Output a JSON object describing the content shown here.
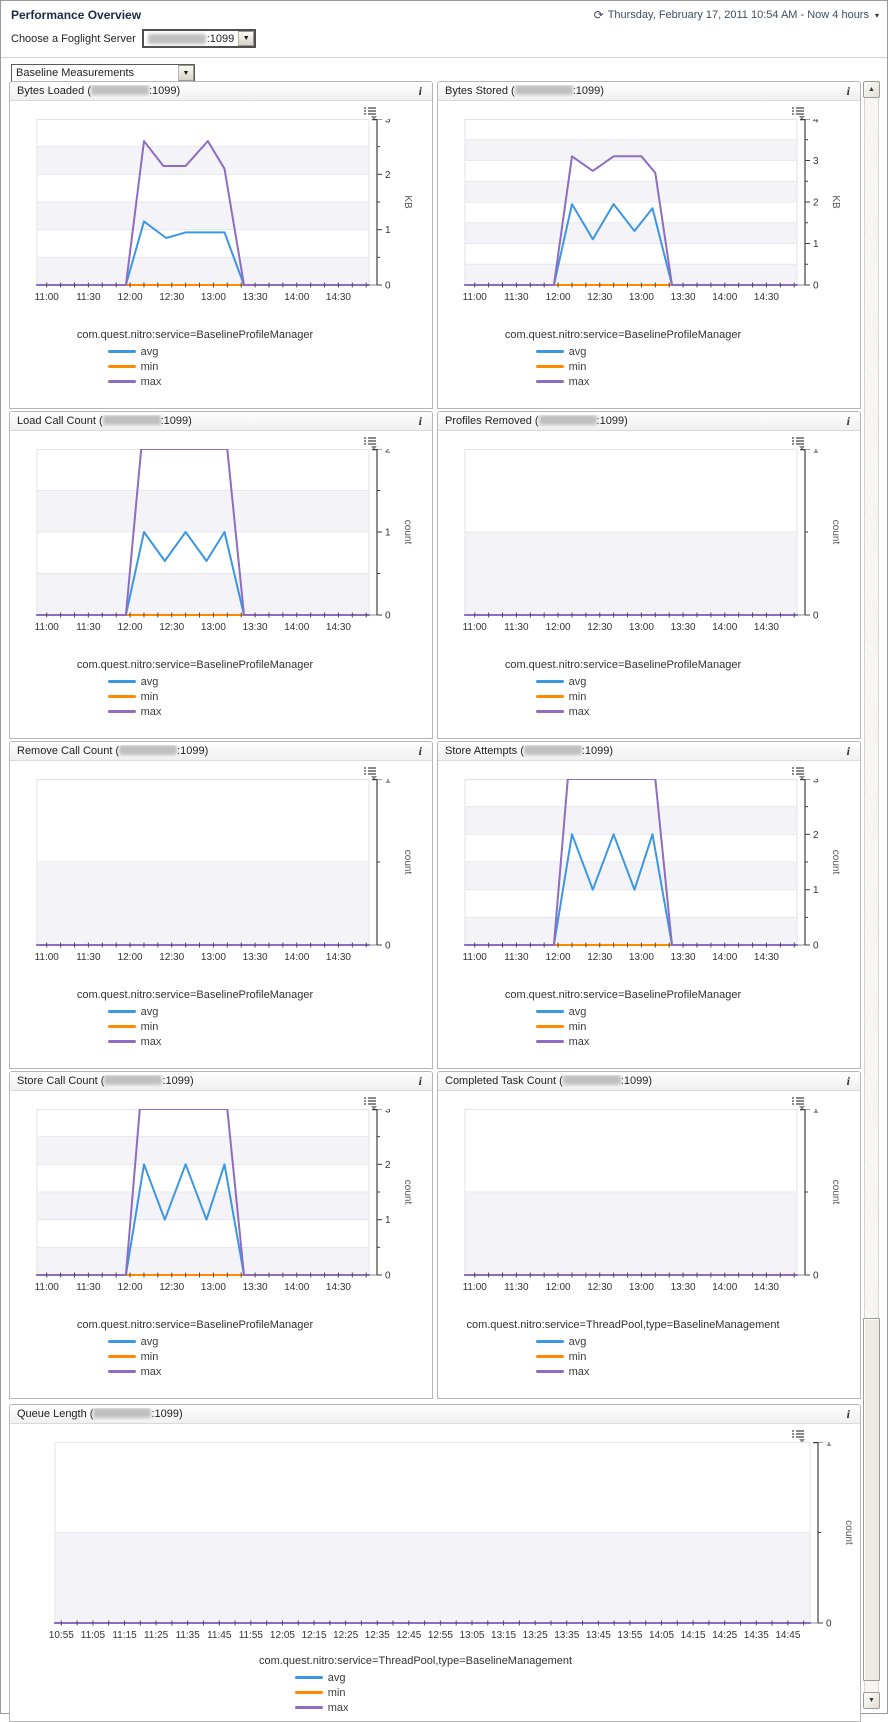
{
  "page": {
    "title": "Performance Overview",
    "timerange": "Thursday, February 17, 2011 10:54 AM - Now 4 hours",
    "server_label": "Choose a Foglight Server",
    "server_value_suffix": ":1099",
    "server_redacted": true,
    "measurement_value": "Baseline Measurements"
  },
  "icons": {
    "timerange": "⟳",
    "date_caret": "▾",
    "combo_arrow": "▼",
    "info": "i",
    "scroll_up": "▲",
    "scroll_down": "▼"
  },
  "colors": {
    "avg": "#3b97e3",
    "min": "#ff8a00",
    "max": "#8e6cc2",
    "band": "#f4f4f8",
    "grid": "#e7e7ee",
    "axis": "#3f3f3f",
    "baseline": "#8b8b93",
    "tick_text": "#333333",
    "unit_text": "#555555"
  },
  "legend_order": [
    "avg",
    "min",
    "max"
  ],
  "chart_data": [
    {
      "id": "bytes-loaded",
      "type": "line",
      "span": "half",
      "title_prefix": "Bytes Loaded (",
      "title_suffix": ":1099)",
      "legend_title": "com.quest.nitro:service=BaselineProfileManager",
      "ylim": [
        0,
        3
      ],
      "y_axis": {
        "unit": "KB",
        "major": 1,
        "minor": 0.5
      },
      "x_axis": {
        "range": [
          "10:53",
          "14:52"
        ],
        "tick_start": "11:00",
        "tick_step_min": 10,
        "labels": [
          "11:00",
          "11:30",
          "12:00",
          "12:30",
          "13:00",
          "13:30",
          "14:00",
          "14:30"
        ]
      },
      "series": [
        {
          "name": "avg",
          "points": [
            [
              "10:53",
              0
            ],
            [
              "11:57",
              0
            ],
            [
              "12:10",
              1.15
            ],
            [
              "12:26",
              0.85
            ],
            [
              "12:40",
              0.95
            ],
            [
              "13:08",
              0.95
            ],
            [
              "13:22",
              0
            ],
            [
              "14:52",
              0
            ]
          ]
        },
        {
          "name": "min",
          "points": [
            [
              "11:57",
              0
            ],
            [
              "13:22",
              0
            ]
          ]
        },
        {
          "name": "max",
          "points": [
            [
              "10:53",
              0
            ],
            [
              "11:57",
              0
            ],
            [
              "12:10",
              2.6
            ],
            [
              "12:24",
              2.15
            ],
            [
              "12:40",
              2.15
            ],
            [
              "12:56",
              2.6
            ],
            [
              "13:08",
              2.1
            ],
            [
              "13:22",
              0
            ],
            [
              "14:52",
              0
            ]
          ]
        }
      ]
    },
    {
      "id": "bytes-stored",
      "type": "line",
      "span": "half",
      "title_prefix": "Bytes Stored (",
      "title_suffix": ":1099)",
      "legend_title": "com.quest.nitro:service=BaselineProfileManager",
      "ylim": [
        0,
        4
      ],
      "y_axis": {
        "unit": "KB",
        "major": 1,
        "minor": 0.5
      },
      "x_axis": {
        "range": [
          "10:53",
          "14:52"
        ],
        "tick_start": "11:00",
        "tick_step_min": 10,
        "labels": [
          "11:00",
          "11:30",
          "12:00",
          "12:30",
          "13:00",
          "13:30",
          "14:00",
          "14:30"
        ]
      },
      "series": [
        {
          "name": "avg",
          "points": [
            [
              "10:53",
              0
            ],
            [
              "11:57",
              0
            ],
            [
              "12:10",
              1.95
            ],
            [
              "12:25",
              1.1
            ],
            [
              "12:40",
              1.95
            ],
            [
              "12:55",
              1.3
            ],
            [
              "13:08",
              1.85
            ],
            [
              "13:22",
              0
            ],
            [
              "14:52",
              0
            ]
          ]
        },
        {
          "name": "min",
          "points": [
            [
              "11:57",
              0
            ],
            [
              "13:22",
              0
            ]
          ]
        },
        {
          "name": "max",
          "points": [
            [
              "10:53",
              0
            ],
            [
              "11:57",
              0
            ],
            [
              "12:10",
              3.1
            ],
            [
              "12:25",
              2.75
            ],
            [
              "12:40",
              3.1
            ],
            [
              "13:00",
              3.1
            ],
            [
              "13:10",
              2.7
            ],
            [
              "13:22",
              0
            ],
            [
              "14:52",
              0
            ]
          ]
        }
      ]
    },
    {
      "id": "load-call-count",
      "type": "line",
      "span": "half",
      "title_prefix": "Load Call Count (",
      "title_suffix": ":1099)",
      "legend_title": "com.quest.nitro:service=BaselineProfileManager",
      "ylim": [
        0,
        2
      ],
      "y_axis": {
        "unit": "count",
        "major": 1,
        "minor": 0.5
      },
      "x_axis": {
        "range": [
          "10:53",
          "14:52"
        ],
        "tick_start": "11:00",
        "tick_step_min": 10,
        "labels": [
          "11:00",
          "11:30",
          "12:00",
          "12:30",
          "13:00",
          "13:30",
          "14:00",
          "14:30"
        ]
      },
      "series": [
        {
          "name": "avg",
          "points": [
            [
              "10:53",
              0
            ],
            [
              "11:57",
              0
            ],
            [
              "12:10",
              1
            ],
            [
              "12:25",
              0.65
            ],
            [
              "12:40",
              1
            ],
            [
              "12:55",
              0.65
            ],
            [
              "13:08",
              1
            ],
            [
              "13:22",
              0
            ],
            [
              "14:52",
              0
            ]
          ]
        },
        {
          "name": "min",
          "points": [
            [
              "11:57",
              0
            ],
            [
              "13:22",
              0
            ]
          ]
        },
        {
          "name": "max",
          "points": [
            [
              "10:53",
              0
            ],
            [
              "11:57",
              0
            ],
            [
              "12:08",
              2
            ],
            [
              "13:10",
              2
            ],
            [
              "13:22",
              0
            ],
            [
              "14:52",
              0
            ]
          ]
        }
      ]
    },
    {
      "id": "profiles-removed",
      "type": "line",
      "span": "half",
      "title_prefix": "Profiles Removed (",
      "title_suffix": ":1099)",
      "legend_title": "com.quest.nitro:service=BaselineProfileManager",
      "ylim": [
        0,
        1
      ],
      "y_axis": {
        "unit": "count",
        "major": 1,
        "minor": 0.5
      },
      "x_axis": {
        "range": [
          "10:53",
          "14:52"
        ],
        "tick_start": "11:00",
        "tick_step_min": 10,
        "labels": [
          "11:00",
          "11:30",
          "12:00",
          "12:30",
          "13:00",
          "13:30",
          "14:00",
          "14:30"
        ]
      },
      "series": [
        {
          "name": "avg",
          "points": [
            [
              "10:53",
              0
            ],
            [
              "14:52",
              0
            ]
          ]
        },
        {
          "name": "min",
          "points": [
            [
              "11:57",
              0
            ],
            [
              "13:22",
              0
            ]
          ]
        },
        {
          "name": "max",
          "points": [
            [
              "10:53",
              0
            ],
            [
              "14:52",
              0
            ]
          ]
        }
      ]
    },
    {
      "id": "remove-call-count",
      "type": "line",
      "span": "half",
      "title_prefix": "Remove Call Count (",
      "title_suffix": ":1099)",
      "legend_title": "com.quest.nitro:service=BaselineProfileManager",
      "ylim": [
        0,
        1
      ],
      "y_axis": {
        "unit": "count",
        "major": 1,
        "minor": 0.5
      },
      "x_axis": {
        "range": [
          "10:53",
          "14:52"
        ],
        "tick_start": "11:00",
        "tick_step_min": 10,
        "labels": [
          "11:00",
          "11:30",
          "12:00",
          "12:30",
          "13:00",
          "13:30",
          "14:00",
          "14:30"
        ]
      },
      "series": [
        {
          "name": "avg",
          "points": [
            [
              "10:53",
              0
            ],
            [
              "14:52",
              0
            ]
          ]
        },
        {
          "name": "min",
          "points": [
            [
              "11:57",
              0
            ],
            [
              "13:22",
              0
            ]
          ]
        },
        {
          "name": "max",
          "points": [
            [
              "10:53",
              0
            ],
            [
              "14:52",
              0
            ]
          ]
        }
      ]
    },
    {
      "id": "store-attempts",
      "type": "line",
      "span": "half",
      "title_prefix": "Store Attempts (",
      "title_suffix": ":1099)",
      "legend_title": "com.quest.nitro:service=BaselineProfileManager",
      "ylim": [
        0,
        3
      ],
      "y_axis": {
        "unit": "count",
        "major": 1,
        "minor": 0.5
      },
      "x_axis": {
        "range": [
          "10:53",
          "14:52"
        ],
        "tick_start": "11:00",
        "tick_step_min": 10,
        "labels": [
          "11:00",
          "11:30",
          "12:00",
          "12:30",
          "13:00",
          "13:30",
          "14:00",
          "14:30"
        ]
      },
      "series": [
        {
          "name": "avg",
          "points": [
            [
              "10:53",
              0
            ],
            [
              "11:57",
              0
            ],
            [
              "12:10",
              2
            ],
            [
              "12:25",
              1
            ],
            [
              "12:40",
              2
            ],
            [
              "12:55",
              1
            ],
            [
              "13:08",
              2
            ],
            [
              "13:22",
              0
            ],
            [
              "14:52",
              0
            ]
          ]
        },
        {
          "name": "min",
          "points": [
            [
              "11:57",
              0
            ],
            [
              "13:22",
              0
            ]
          ]
        },
        {
          "name": "max",
          "points": [
            [
              "10:53",
              0
            ],
            [
              "11:57",
              0
            ],
            [
              "12:07",
              3
            ],
            [
              "13:10",
              3
            ],
            [
              "13:22",
              0
            ],
            [
              "14:52",
              0
            ]
          ]
        }
      ]
    },
    {
      "id": "store-call-count",
      "type": "line",
      "span": "half",
      "title_prefix": "Store Call Count (",
      "title_suffix": ":1099)",
      "legend_title": "com.quest.nitro:service=BaselineProfileManager",
      "ylim": [
        0,
        3
      ],
      "y_axis": {
        "unit": "count",
        "major": 1,
        "minor": 0.5
      },
      "x_axis": {
        "range": [
          "10:53",
          "14:52"
        ],
        "tick_start": "11:00",
        "tick_step_min": 10,
        "labels": [
          "11:00",
          "11:30",
          "12:00",
          "12:30",
          "13:00",
          "13:30",
          "14:00",
          "14:30"
        ]
      },
      "series": [
        {
          "name": "avg",
          "points": [
            [
              "10:53",
              0
            ],
            [
              "11:57",
              0
            ],
            [
              "12:10",
              2
            ],
            [
              "12:25",
              1
            ],
            [
              "12:40",
              2
            ],
            [
              "12:55",
              1
            ],
            [
              "13:08",
              2
            ],
            [
              "13:22",
              0
            ],
            [
              "14:52",
              0
            ]
          ]
        },
        {
          "name": "min",
          "points": [
            [
              "11:57",
              0
            ],
            [
              "13:22",
              0
            ]
          ]
        },
        {
          "name": "max",
          "points": [
            [
              "10:53",
              0
            ],
            [
              "11:57",
              0
            ],
            [
              "12:07",
              3
            ],
            [
              "13:10",
              3
            ],
            [
              "13:22",
              0
            ],
            [
              "14:52",
              0
            ]
          ]
        }
      ]
    },
    {
      "id": "completed-task-count",
      "type": "line",
      "span": "half",
      "title_prefix": "Completed Task Count (",
      "title_suffix": ":1099)",
      "legend_title": "com.quest.nitro:service=ThreadPool,type=BaselineManagement",
      "ylim": [
        0,
        1
      ],
      "y_axis": {
        "unit": "count",
        "major": 1,
        "minor": 0.5
      },
      "x_axis": {
        "range": [
          "10:53",
          "14:52"
        ],
        "tick_start": "11:00",
        "tick_step_min": 10,
        "labels": [
          "11:00",
          "11:30",
          "12:00",
          "12:30",
          "13:00",
          "13:30",
          "14:00",
          "14:30"
        ]
      },
      "series": [
        {
          "name": "avg",
          "points": [
            [
              "10:53",
              0
            ],
            [
              "14:52",
              0
            ]
          ]
        },
        {
          "name": "min",
          "points": [
            [
              "11:57",
              0
            ],
            [
              "13:22",
              0
            ]
          ]
        },
        {
          "name": "max",
          "points": [
            [
              "10:53",
              0
            ],
            [
              "14:52",
              0
            ]
          ]
        }
      ]
    },
    {
      "id": "queue-length",
      "type": "line",
      "span": "full",
      "title_prefix": "Queue Length (",
      "title_suffix": ":1099)",
      "legend_title": "com.quest.nitro:service=ThreadPool,type=BaselineManagement",
      "ylim": [
        0,
        1
      ],
      "y_axis": {
        "unit": "count",
        "major": 1,
        "minor": 0.5
      },
      "x_axis": {
        "range": [
          "10:53",
          "14:52"
        ],
        "tick_start": "10:55",
        "tick_step_min": 5,
        "labels": [
          "10:55",
          "11:05",
          "11:15",
          "11:25",
          "11:35",
          "11:45",
          "11:55",
          "12:05",
          "12:15",
          "12:25",
          "12:35",
          "12:45",
          "12:55",
          "13:05",
          "13:15",
          "13:25",
          "13:35",
          "13:45",
          "13:55",
          "14:05",
          "14:15",
          "14:25",
          "14:35",
          "14:45"
        ]
      },
      "series": [
        {
          "name": "avg",
          "points": [
            [
              "10:53",
              0
            ],
            [
              "14:52",
              0
            ]
          ]
        },
        {
          "name": "min",
          "points": [
            [
              "11:57",
              0
            ],
            [
              "13:22",
              0
            ]
          ]
        },
        {
          "name": "max",
          "points": [
            [
              "10:53",
              0
            ],
            [
              "14:52",
              0
            ]
          ]
        }
      ]
    }
  ]
}
